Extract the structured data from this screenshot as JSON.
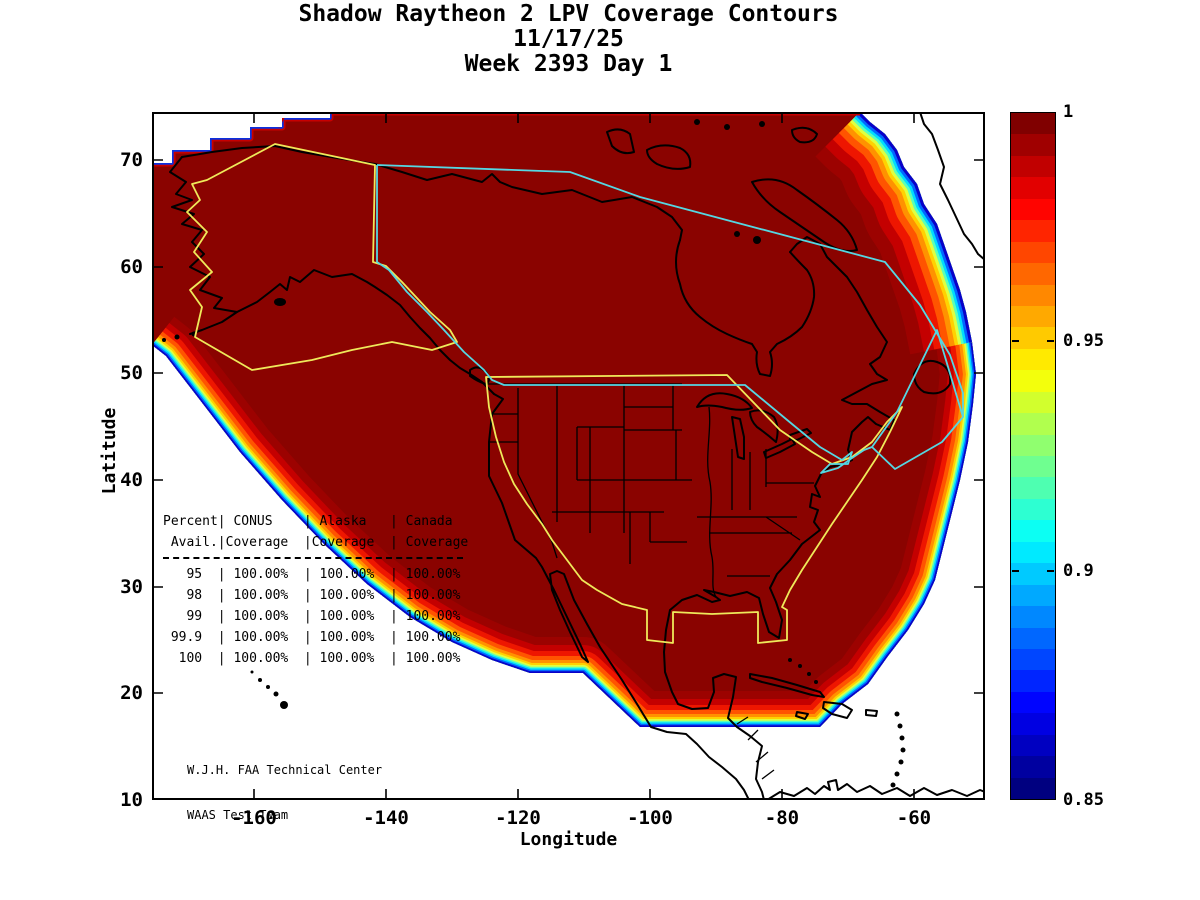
{
  "title": {
    "line1": "Shadow Raytheon 2 LPV Coverage Contours",
    "line2": "11/17/25",
    "line3": "Week 2393 Day 1"
  },
  "plot": {
    "x_axis": {
      "label": "Longitude",
      "ticks": [
        "-160",
        "-140",
        "-120",
        "-100",
        "-80",
        "-60"
      ],
      "tick_values": [
        -160,
        -140,
        -120,
        -100,
        -80,
        -60
      ],
      "range": [
        -175.5,
        -49.2
      ]
    },
    "y_axis": {
      "label": "Latitude",
      "ticks": [
        "70",
        "60",
        "50",
        "40",
        "30",
        "20",
        "10"
      ],
      "tick_values": [
        70,
        60,
        50,
        40,
        30,
        20,
        10
      ],
      "range": [
        10,
        74.5
      ]
    }
  },
  "colorbar": {
    "colormap": "jet",
    "min": 0.85,
    "max": 1,
    "steps": 32,
    "tick_labels": [
      "1",
      "0.95",
      "0.9",
      "0.85"
    ],
    "tick_values": [
      1,
      0.95,
      0.9,
      0.85
    ]
  },
  "coverage_table": {
    "lines": [
      "Percent| CONUS    | Alaska   | Canada",
      " Avail.|Coverage  |Coverage  | Coverage",
      "   95  | 100.00%  | 100.00%  | 100.00%",
      "   98  | 100.00%  | 100.00%  | 100.00%",
      "   99  | 100.00%  | 100.00%  | 100.00%",
      " 99.9  | 100.00%  | 100.00%  | 100.00%",
      "  100  | 100.00%  | 100.00%  | 100.00%"
    ],
    "columns": [
      "Percent Avail.",
      "CONUS Coverage",
      "Alaska Coverage",
      "Canada Coverage"
    ],
    "rows": [
      [
        "95",
        "100.00%",
        "100.00%",
        "100.00%"
      ],
      [
        "98",
        "100.00%",
        "100.00%",
        "100.00%"
      ],
      [
        "99",
        "100.00%",
        "100.00%",
        "100.00%"
      ],
      [
        "99.9",
        "100.00%",
        "100.00%",
        "100.00%"
      ],
      [
        "100",
        "100.00%",
        "100.00%",
        "100.00%"
      ]
    ]
  },
  "credit": {
    "line1": "W.J.H. FAA Technical Center",
    "line2": "WAAS Test Team"
  },
  "colors": {
    "interior_max_coverage": "#8a0300",
    "service_volume_yellow": "#efe95a",
    "service_volume_cyan": "#55d7e2",
    "coastline": "#000000"
  },
  "chart_data": {
    "type": "filled_contour_map",
    "title": "Shadow Raytheon 2 LPV Coverage Contours",
    "subtitle_date": "11/17/25",
    "subtitle_week": "Week 2393 Day 1",
    "quantity": "LPV coverage availability fraction over North America",
    "xlabel": "Longitude",
    "ylabel": "Latitude",
    "xlim": [
      -175.5,
      -49.2
    ],
    "ylim": [
      10,
      74.5
    ],
    "x_ticks": [
      -160,
      -140,
      -120,
      -100,
      -80,
      -60
    ],
    "y_ticks": [
      10,
      20,
      30,
      40,
      50,
      60,
      70
    ],
    "colorbar": {
      "min": 0.85,
      "max": 1,
      "ticks": [
        0.85,
        0.9,
        0.95,
        1
      ],
      "colormap": "jet"
    },
    "contour_description": "Value 1 (dark red) covers nearly all of Alaska, Canada and CONUS; bands step down through red, orange, yellow, green, cyan and blue (0.85) at the southwest Pacific edge, the Caribbean southeast edge and near Greenland; white outside coverage.",
    "regions_outlined": [
      "CONUS",
      "Alaska",
      "Canada"
    ],
    "coverage_table": {
      "columns": [
        "Percent Avail.",
        "CONUS Coverage",
        "Alaska Coverage",
        "Canada Coverage"
      ],
      "rows": [
        [
          "95",
          "100.00%",
          "100.00%",
          "100.00%"
        ],
        [
          "98",
          "100.00%",
          "100.00%",
          "100.00%"
        ],
        [
          "99",
          "100.00%",
          "100.00%",
          "100.00%"
        ],
        [
          "99.9",
          "100.00%",
          "100.00%",
          "100.00%"
        ],
        [
          "100",
          "100.00%",
          "100.00%",
          "100.00%"
        ]
      ]
    }
  }
}
